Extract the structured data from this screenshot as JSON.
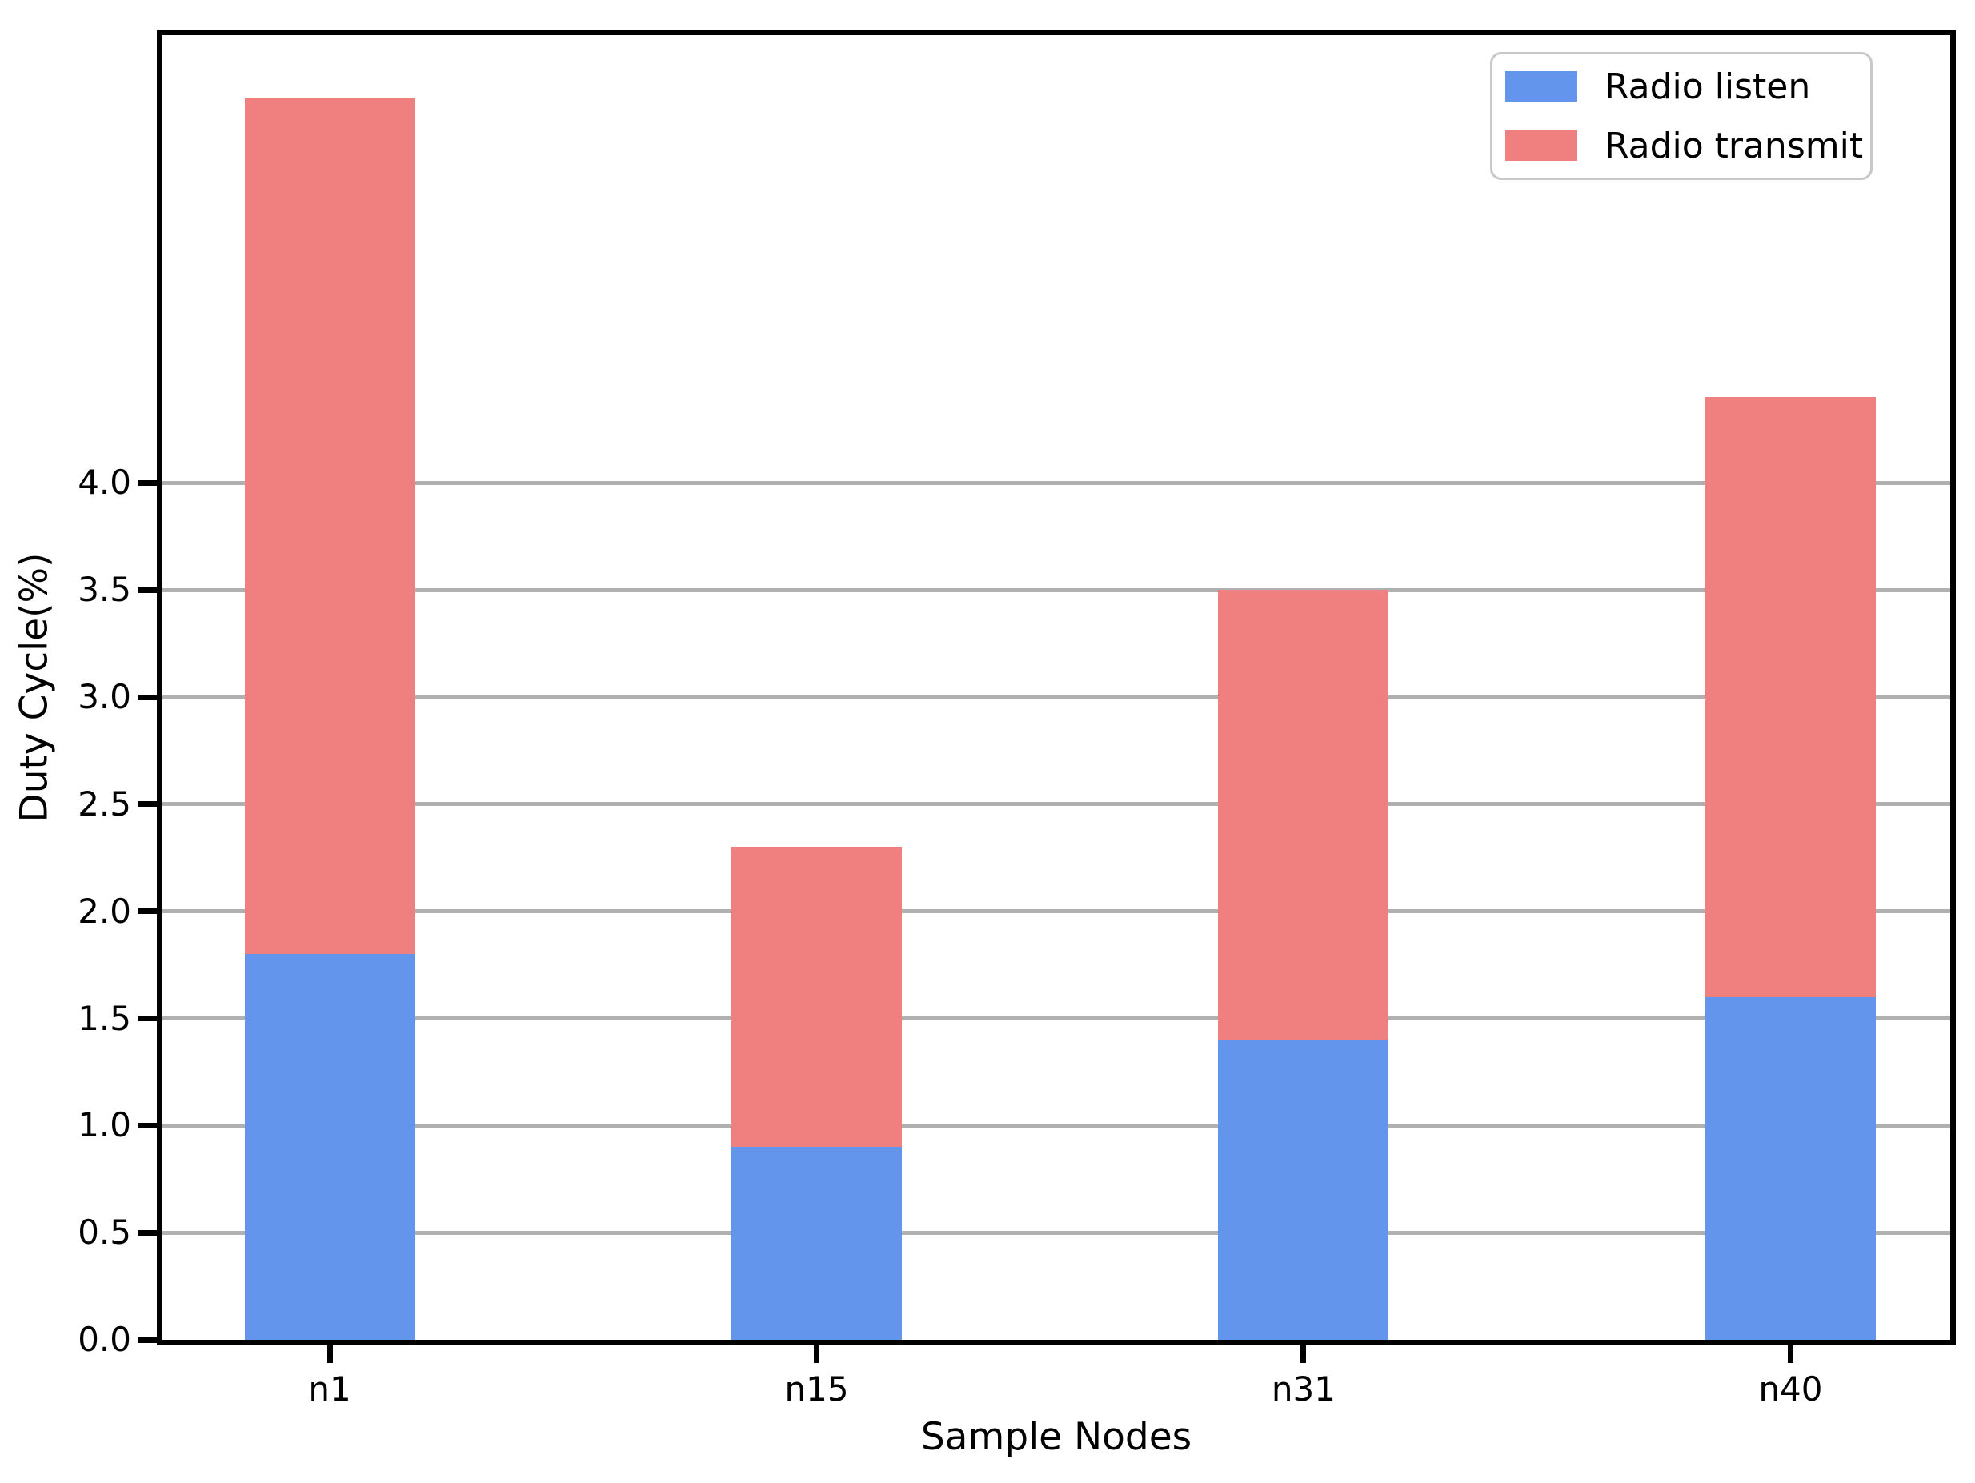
{
  "figure": {
    "background": "#ffffff",
    "axis_color": "#000000",
    "grid_color": "#b0b0b0"
  },
  "chart_data": {
    "type": "bar",
    "stacked": true,
    "title": "",
    "xlabel": "Sample Nodes",
    "ylabel": "Duty Cycle(%)",
    "categories": [
      "n1",
      "n15",
      "n31",
      "n40"
    ],
    "series": [
      {
        "name": "Radio listen",
        "color": "#6495ED",
        "values": [
          1.8,
          0.9,
          1.4,
          1.6
        ]
      },
      {
        "name": "Radio transmit",
        "color": "#F08080",
        "values": [
          4.0,
          1.4,
          2.1,
          2.8
        ]
      }
    ],
    "stack_totals": [
      5.8,
      2.3,
      3.5,
      4.4
    ],
    "ylim": [
      0,
      6.09
    ],
    "yticks": [
      "0.0",
      "0.5",
      "1.0",
      "1.5",
      "2.0",
      "2.5",
      "3.0",
      "3.5",
      "4.0"
    ],
    "grid": "horizontal",
    "legend": {
      "position": "upper right",
      "items": [
        "Radio listen",
        "Radio transmit"
      ]
    }
  }
}
